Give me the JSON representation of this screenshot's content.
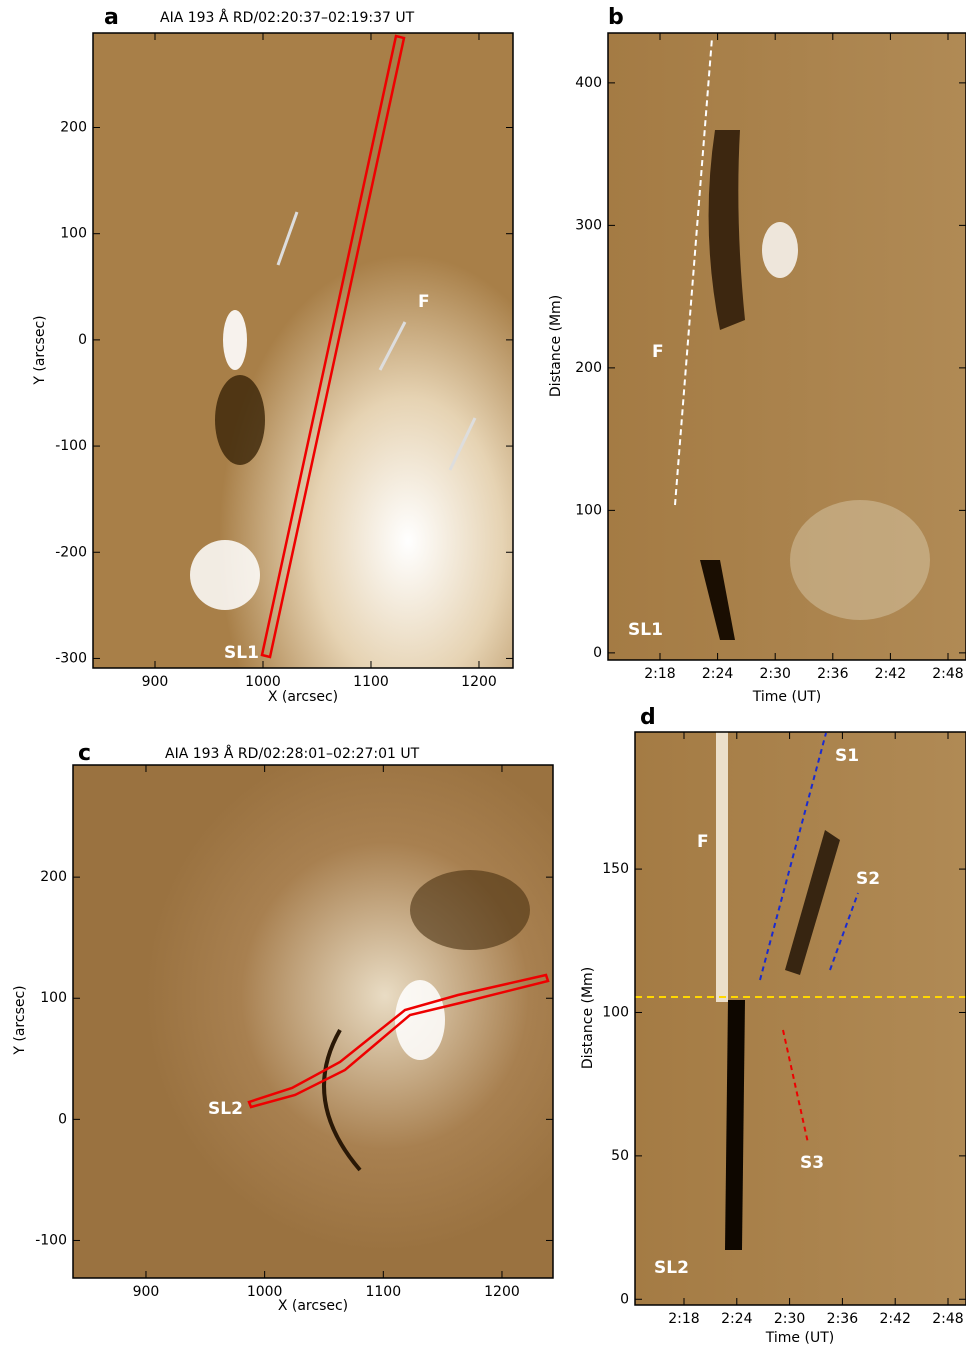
{
  "panels": [
    {
      "label": "a",
      "title": "AIA 193 Å RD/02:20:37–02:19:37 UT",
      "xlabel": "X (arcsec)",
      "ylabel": "Y (arcsec)",
      "xlim": [
        842.6,
        1231.5
      ],
      "ylim": [
        -309,
        289
      ],
      "xticks": [
        900,
        1000,
        1100,
        1200
      ],
      "yticks": [
        -300,
        -200,
        -100,
        0,
        100,
        200
      ],
      "annotations": [
        "F",
        "SL1"
      ]
    },
    {
      "label": "b",
      "xlabel": "Time (UT)",
      "ylabel": "Distance (Mm)",
      "ylim": [
        -5,
        435
      ],
      "xticks": [
        "2:18",
        "2:24",
        "2:30",
        "2:36",
        "2:42",
        "2:48"
      ],
      "yticks": [
        0,
        100,
        200,
        300,
        400
      ],
      "annotations": [
        "F",
        "SL1"
      ]
    },
    {
      "label": "c",
      "title": "AIA 193 Å  RD/02:28:01–02:27:01 UT",
      "xlabel": "X (arcsec)",
      "ylabel": "Y (arcsec)",
      "xlim": [
        838.5,
        1243
      ],
      "ylim": [
        -131,
        292.6
      ],
      "xticks": [
        900,
        1000,
        1100,
        1200
      ],
      "yticks": [
        -100,
        0,
        100,
        200
      ],
      "annotations": [
        "SL2"
      ]
    },
    {
      "label": "d",
      "xlabel": "Time (UT)",
      "ylabel": "Distance (Mm)",
      "ylim": [
        -2,
        197.8
      ],
      "xticks": [
        "2:18",
        "2:24",
        "2:30",
        "2:36",
        "2:42",
        "2:48"
      ],
      "yticks": [
        0,
        50,
        100,
        150
      ],
      "annotations": [
        "F",
        "S1",
        "S2",
        "S3",
        "SL2"
      ]
    }
  ]
}
